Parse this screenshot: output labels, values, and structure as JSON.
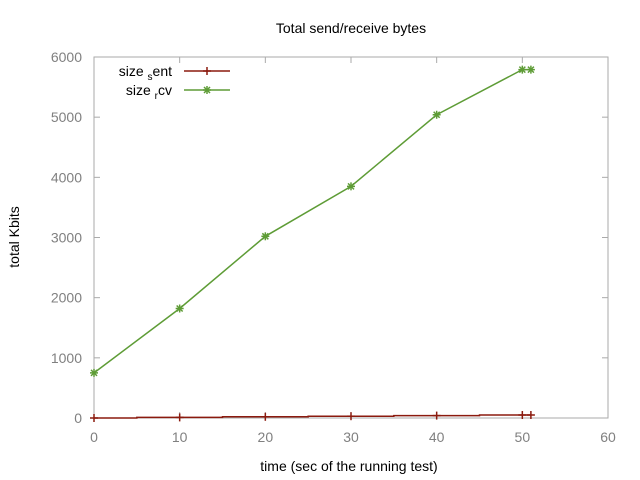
{
  "chart_data": {
    "type": "line",
    "title": "Total send/receive bytes",
    "xlabel": "time (sec of the running test)",
    "ylabel": "total Kbits",
    "xlim": [
      0,
      60
    ],
    "ylim": [
      0,
      6000
    ],
    "xticks": [
      0,
      10,
      20,
      30,
      40,
      50,
      60
    ],
    "yticks": [
      0,
      1000,
      2000,
      3000,
      4000,
      5000,
      6000
    ],
    "grid": false,
    "legend_position": "top-left",
    "series": [
      {
        "name_base": "size",
        "name_sub": "s",
        "name_rest": "ent",
        "color": "#8b1a0e",
        "marker": "plus",
        "line_style": "step",
        "x": [
          0,
          10,
          20,
          30,
          40,
          50,
          51
        ],
        "y": [
          0,
          10,
          20,
          30,
          40,
          50,
          50
        ]
      },
      {
        "name_base": "size",
        "name_sub": "r",
        "name_rest": "cv",
        "color": "#5e9c36",
        "marker": "star",
        "line_style": "linear",
        "x": [
          0,
          10,
          20,
          30,
          40,
          50,
          51
        ],
        "y": [
          750,
          1820,
          3020,
          3850,
          5040,
          5790,
          5790
        ]
      }
    ]
  }
}
